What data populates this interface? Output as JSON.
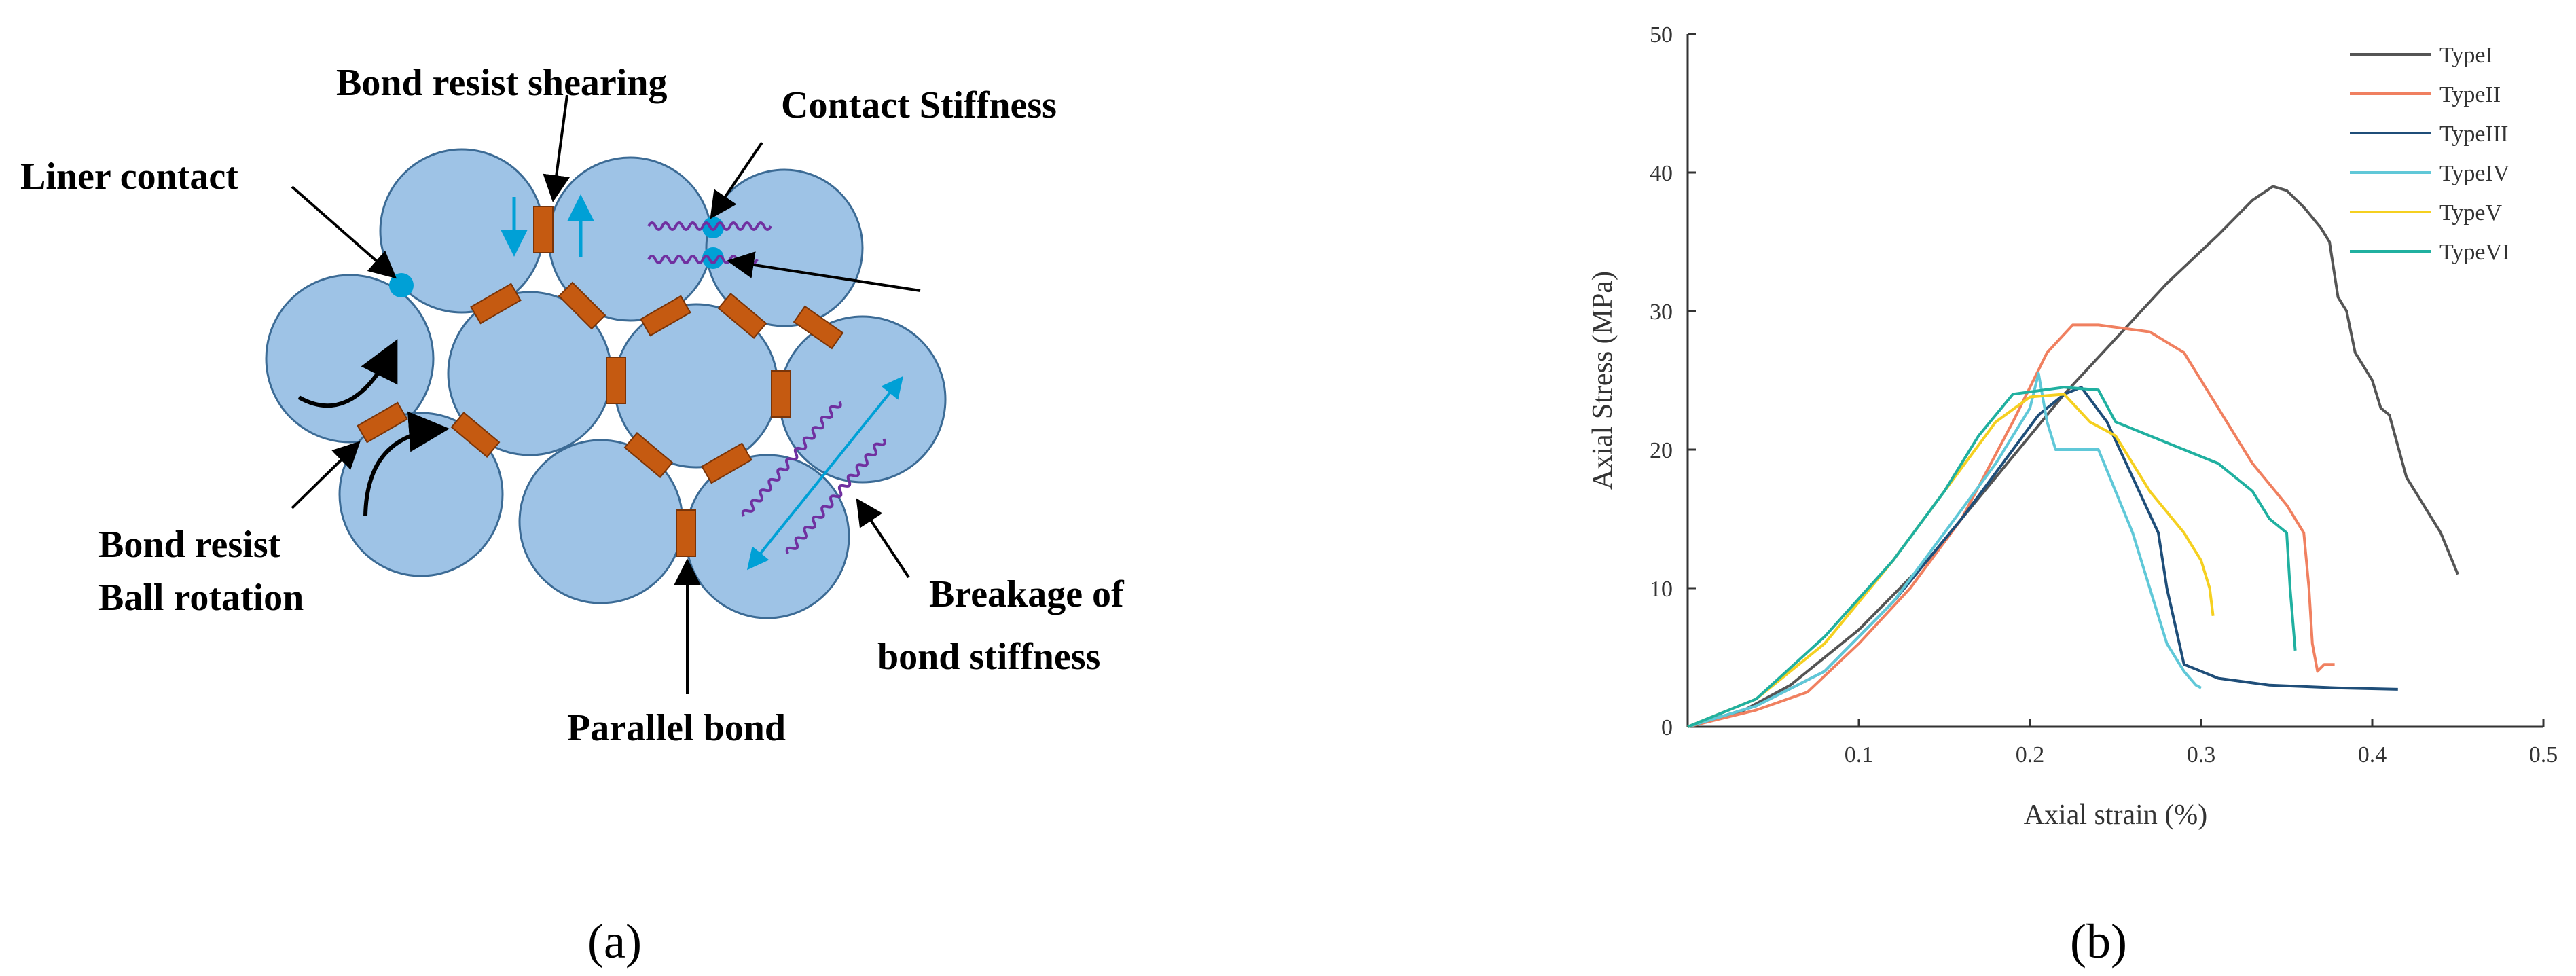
{
  "panel_a": {
    "caption": "(a)",
    "labels": {
      "liner_contact": "Liner contact",
      "bond_resist_shearing": "Bond resist shearing",
      "contact_stiffness": "Contact Stiffness",
      "bond_resist_line1": "Bond resist",
      "bond_resist_line2": "Ball rotation",
      "parallel_bond": "Parallel bond",
      "breakage_line1": "Breakage of",
      "breakage_line2": "bond stiffness"
    },
    "colors": {
      "particle": "#9ec3e6",
      "particle_edge": "#3c6b95",
      "bond": "#c55a11",
      "spring": "#7030a0",
      "arrow_cyan": "#00a0d6",
      "contact_dot": "#00a0d6"
    }
  },
  "panel_b": {
    "caption": "(b)"
  },
  "chart_data": {
    "type": "line",
    "xlabel": "Axial strain (%)",
    "ylabel": "Axial Stress (MPa)",
    "xlim": [
      0,
      0.5
    ],
    "ylim": [
      0,
      50
    ],
    "xticks": [
      0.1,
      0.2,
      0.3,
      0.4,
      0.5
    ],
    "yticks": [
      0,
      10,
      20,
      30,
      40,
      50
    ],
    "legend": "top-right",
    "series": [
      {
        "name": "TypeI",
        "color": "#555555",
        "points": [
          [
            0,
            0
          ],
          [
            0.03,
            1
          ],
          [
            0.06,
            3
          ],
          [
            0.1,
            7
          ],
          [
            0.14,
            12
          ],
          [
            0.18,
            18
          ],
          [
            0.22,
            24
          ],
          [
            0.25,
            28
          ],
          [
            0.28,
            32
          ],
          [
            0.31,
            35.5
          ],
          [
            0.33,
            38
          ],
          [
            0.342,
            39
          ],
          [
            0.35,
            38.7
          ],
          [
            0.36,
            37.5
          ],
          [
            0.37,
            36
          ],
          [
            0.375,
            35
          ],
          [
            0.38,
            31
          ],
          [
            0.385,
            30
          ],
          [
            0.39,
            27
          ],
          [
            0.395,
            26
          ],
          [
            0.4,
            25
          ],
          [
            0.405,
            23
          ],
          [
            0.41,
            22.5
          ],
          [
            0.42,
            18
          ],
          [
            0.44,
            14
          ],
          [
            0.45,
            11
          ]
        ]
      },
      {
        "name": "TypeII",
        "color": "#f08060",
        "points": [
          [
            0,
            0
          ],
          [
            0.04,
            1.2
          ],
          [
            0.07,
            2.5
          ],
          [
            0.1,
            6
          ],
          [
            0.13,
            10
          ],
          [
            0.16,
            15
          ],
          [
            0.19,
            22
          ],
          [
            0.21,
            27
          ],
          [
            0.225,
            29
          ],
          [
            0.24,
            29
          ],
          [
            0.27,
            28.5
          ],
          [
            0.29,
            27
          ],
          [
            0.3,
            25
          ],
          [
            0.31,
            23
          ],
          [
            0.33,
            19
          ],
          [
            0.35,
            16
          ],
          [
            0.36,
            14
          ],
          [
            0.363,
            10
          ],
          [
            0.365,
            6
          ],
          [
            0.368,
            4
          ],
          [
            0.372,
            4.5
          ],
          [
            0.378,
            4.5
          ]
        ]
      },
      {
        "name": "TypeIII",
        "color": "#1f4e79",
        "points": [
          [
            0,
            0
          ],
          [
            0.04,
            1.5
          ],
          [
            0.08,
            4
          ],
          [
            0.12,
            9
          ],
          [
            0.16,
            15
          ],
          [
            0.19,
            20
          ],
          [
            0.205,
            22.5
          ],
          [
            0.22,
            24
          ],
          [
            0.23,
            24.5
          ],
          [
            0.245,
            22
          ],
          [
            0.26,
            18
          ],
          [
            0.275,
            14
          ],
          [
            0.28,
            10
          ],
          [
            0.29,
            4.5
          ],
          [
            0.31,
            3.5
          ],
          [
            0.34,
            3
          ],
          [
            0.38,
            2.8
          ],
          [
            0.415,
            2.7
          ]
        ]
      },
      {
        "name": "TypeIV",
        "color": "#60c8d8",
        "points": [
          [
            0,
            0
          ],
          [
            0.04,
            1.5
          ],
          [
            0.08,
            4
          ],
          [
            0.12,
            9
          ],
          [
            0.15,
            14
          ],
          [
            0.18,
            19
          ],
          [
            0.2,
            23
          ],
          [
            0.205,
            25.5
          ],
          [
            0.21,
            22
          ],
          [
            0.215,
            20
          ],
          [
            0.24,
            20
          ],
          [
            0.26,
            14
          ],
          [
            0.27,
            10
          ],
          [
            0.28,
            6
          ],
          [
            0.29,
            4
          ],
          [
            0.297,
            3
          ],
          [
            0.3,
            2.8
          ]
        ]
      },
      {
        "name": "TypeV",
        "color": "#f5d020",
        "points": [
          [
            0,
            0
          ],
          [
            0.04,
            2
          ],
          [
            0.08,
            6
          ],
          [
            0.12,
            12
          ],
          [
            0.15,
            17
          ],
          [
            0.18,
            22
          ],
          [
            0.2,
            23.8
          ],
          [
            0.22,
            24
          ],
          [
            0.235,
            22
          ],
          [
            0.25,
            21
          ],
          [
            0.27,
            17
          ],
          [
            0.29,
            14
          ],
          [
            0.3,
            12
          ],
          [
            0.305,
            10
          ],
          [
            0.307,
            8
          ]
        ]
      },
      {
        "name": "TypeVI",
        "color": "#20b0a0",
        "points": [
          [
            0,
            0
          ],
          [
            0.04,
            2
          ],
          [
            0.08,
            6.5
          ],
          [
            0.12,
            12
          ],
          [
            0.15,
            17
          ],
          [
            0.17,
            21
          ],
          [
            0.19,
            24
          ],
          [
            0.22,
            24.5
          ],
          [
            0.24,
            24.3
          ],
          [
            0.25,
            22
          ],
          [
            0.27,
            21
          ],
          [
            0.29,
            20
          ],
          [
            0.31,
            19
          ],
          [
            0.33,
            17
          ],
          [
            0.34,
            15
          ],
          [
            0.35,
            14
          ],
          [
            0.352,
            10
          ],
          [
            0.355,
            5.5
          ]
        ]
      }
    ]
  }
}
